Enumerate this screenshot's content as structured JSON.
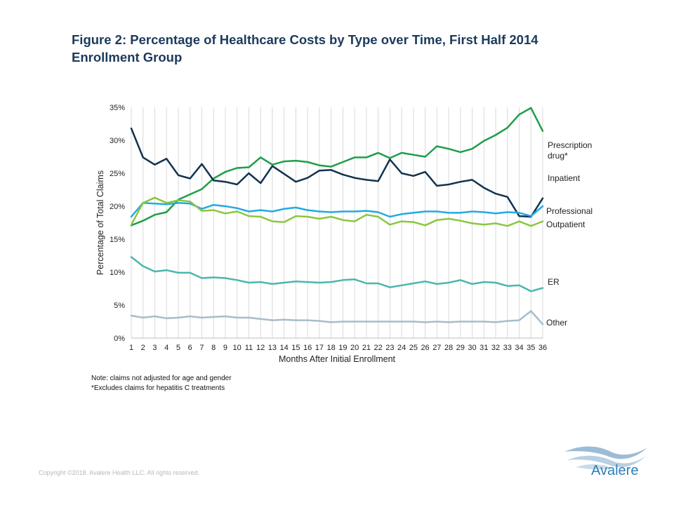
{
  "title": "Figure 2: Percentage of Healthcare Costs by Type over Time, First Half 2014 Enrollment Group",
  "notes": [
    "Note: claims not adjusted for age and gender",
    "*Excludes claims for hepatitis C treatments"
  ],
  "copyright": "Copyright ©2018. Avalere Health LLC. All rights reserved.",
  "logo": {
    "text": "Avalere",
    "icon": "avalere-wave-icon",
    "color": "#2f7fb5"
  },
  "chart_data": {
    "type": "line",
    "xlabel": "Months After Initial Enrollment",
    "ylabel": "Percentage of Total Claims",
    "ylim": [
      0,
      35
    ],
    "yticks": [
      "0%",
      "5%",
      "10%",
      "15%",
      "20%",
      "25%",
      "30%",
      "35%"
    ],
    "grid": "vertical gridlines",
    "x": [
      1,
      2,
      3,
      4,
      5,
      6,
      7,
      8,
      9,
      10,
      11,
      12,
      13,
      14,
      15,
      16,
      17,
      18,
      19,
      20,
      21,
      22,
      23,
      24,
      25,
      26,
      27,
      28,
      29,
      30,
      31,
      32,
      33,
      34,
      35,
      36
    ],
    "series": [
      {
        "name": "Prescription drug*",
        "color": "#1e9e48",
        "values": [
          17.1,
          17.8,
          18.7,
          19.1,
          21.0,
          21.8,
          22.6,
          24.2,
          25.2,
          25.8,
          25.9,
          27.4,
          26.3,
          26.8,
          26.9,
          26.7,
          26.2,
          26.0,
          26.7,
          27.4,
          27.4,
          28.1,
          27.3,
          28.1,
          27.8,
          27.5,
          29.1,
          28.7,
          28.2,
          28.7,
          29.9,
          30.8,
          31.9,
          33.9,
          34.9,
          31.4
        ]
      },
      {
        "name": "Inpatient",
        "color": "#12324f",
        "values": [
          31.8,
          27.4,
          26.3,
          27.2,
          24.7,
          24.2,
          26.4,
          23.9,
          23.7,
          23.3,
          25.0,
          23.5,
          26.1,
          24.9,
          23.7,
          24.3,
          25.4,
          25.5,
          24.8,
          24.3,
          24.0,
          23.8,
          27.1,
          25.0,
          24.6,
          25.2,
          23.1,
          23.3,
          23.7,
          24.0,
          22.8,
          21.9,
          21.4,
          18.5,
          18.4,
          21.2
        ]
      },
      {
        "name": "Professional",
        "color": "#22aae2",
        "values": [
          18.4,
          20.5,
          20.4,
          20.3,
          20.5,
          20.4,
          19.6,
          20.2,
          20.0,
          19.7,
          19.2,
          19.4,
          19.2,
          19.6,
          19.8,
          19.4,
          19.2,
          19.1,
          19.2,
          19.2,
          19.3,
          19.1,
          18.4,
          18.8,
          19.0,
          19.2,
          19.2,
          19.0,
          19.0,
          19.2,
          19.1,
          18.9,
          19.1,
          19.0,
          18.5,
          20.0
        ]
      },
      {
        "name": "Outpatient",
        "color": "#8cc63f",
        "values": [
          17.2,
          20.5,
          21.3,
          20.5,
          20.9,
          20.7,
          19.3,
          19.4,
          18.9,
          19.2,
          18.5,
          18.4,
          17.7,
          17.6,
          18.5,
          18.4,
          18.1,
          18.4,
          17.9,
          17.7,
          18.7,
          18.4,
          17.2,
          17.7,
          17.6,
          17.1,
          17.9,
          18.1,
          17.8,
          17.4,
          17.2,
          17.4,
          17.0,
          17.7,
          17.0,
          17.7
        ]
      },
      {
        "name": "ER",
        "color": "#4ab7ad",
        "values": [
          12.3,
          10.9,
          10.1,
          10.3,
          9.9,
          9.9,
          9.1,
          9.2,
          9.1,
          8.8,
          8.4,
          8.5,
          8.2,
          8.4,
          8.6,
          8.5,
          8.4,
          8.5,
          8.8,
          8.9,
          8.3,
          8.3,
          7.7,
          8.0,
          8.3,
          8.6,
          8.2,
          8.4,
          8.8,
          8.2,
          8.5,
          8.4,
          7.9,
          8.0,
          7.1,
          7.6
        ]
      },
      {
        "name": "Other",
        "color": "#a6bdc9",
        "values": [
          3.4,
          3.1,
          3.3,
          3.0,
          3.1,
          3.3,
          3.1,
          3.2,
          3.3,
          3.1,
          3.1,
          2.9,
          2.7,
          2.8,
          2.7,
          2.7,
          2.6,
          2.4,
          2.5,
          2.5,
          2.5,
          2.5,
          2.5,
          2.5,
          2.5,
          2.4,
          2.5,
          2.4,
          2.5,
          2.5,
          2.5,
          2.4,
          2.6,
          2.7,
          4.1,
          2.1
        ]
      }
    ]
  }
}
